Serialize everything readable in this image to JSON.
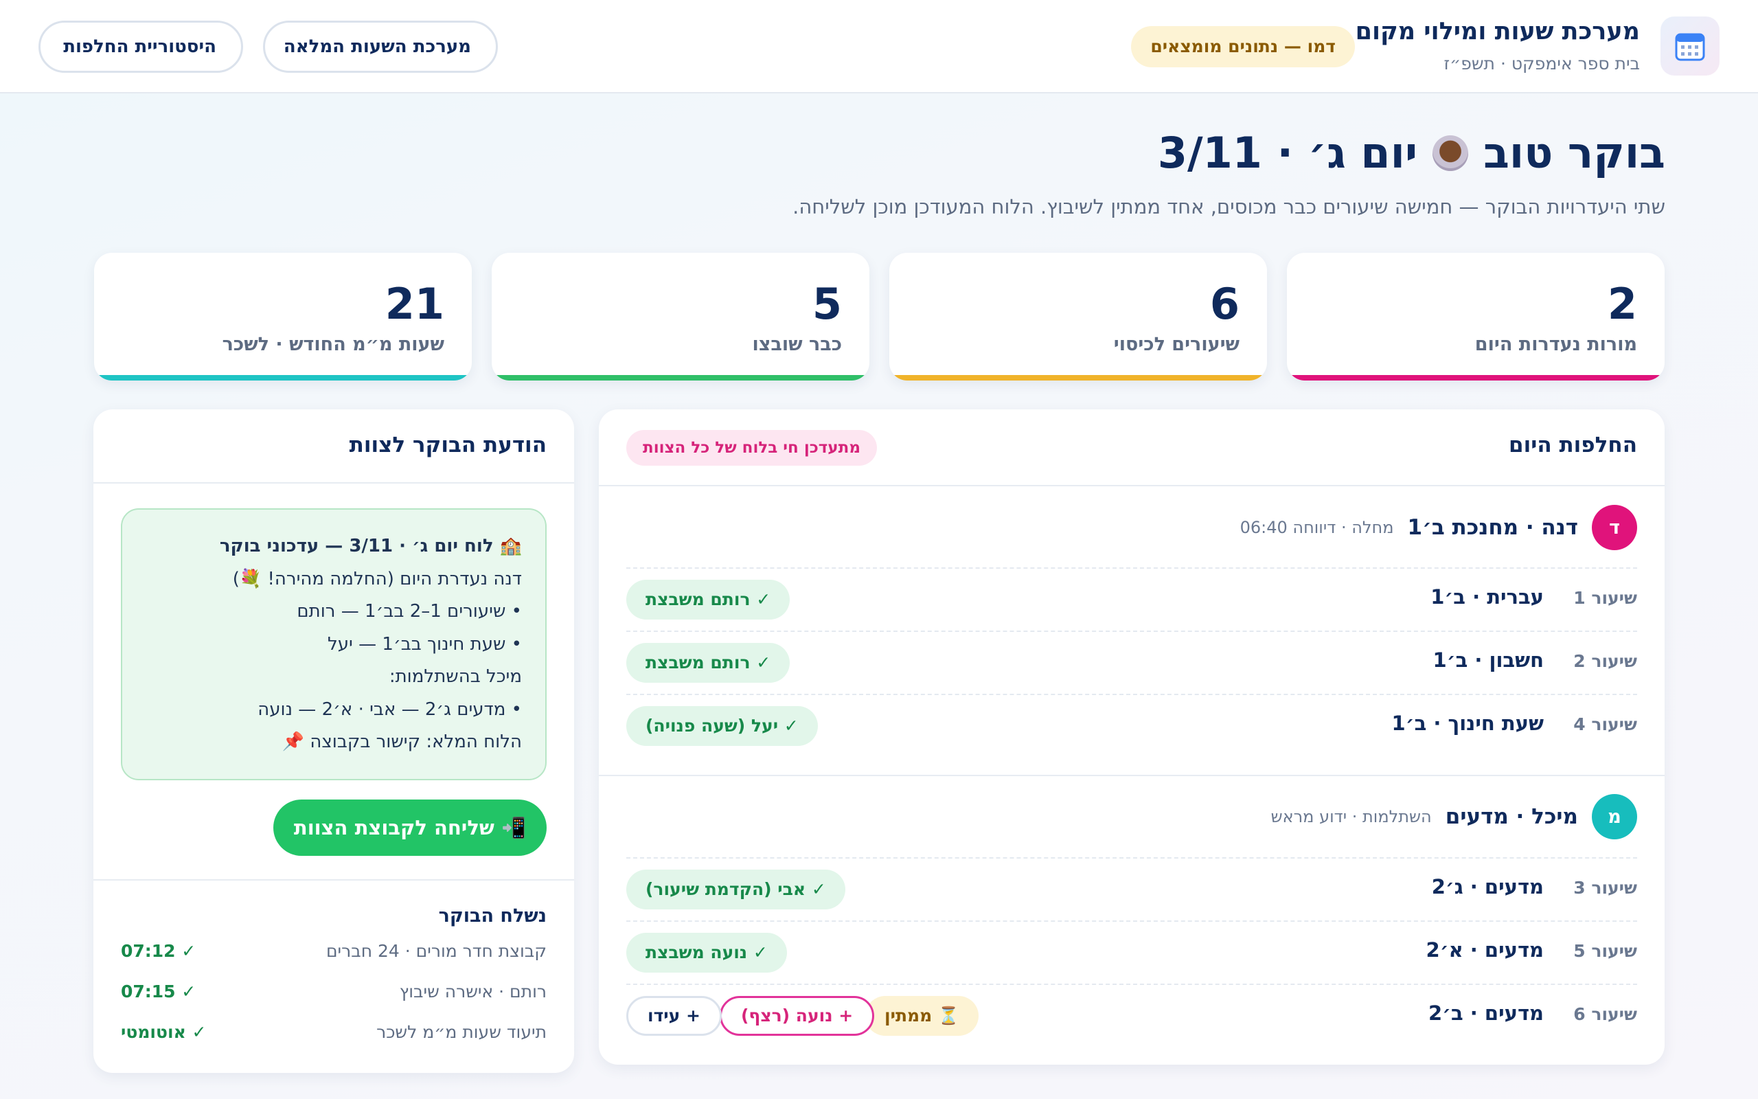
{
  "header": {
    "title": "מערכת שעות ומילוי מקום",
    "subtitle": "בית ספר אימפקט · תשפ״ז",
    "demo_badge": "דמו — נתונים מומצאים",
    "btn_full": "מערכת השעות המלאה",
    "btn_history": "היסטוריית החלפות"
  },
  "greeting": {
    "title_start": "בוקר טוב",
    "title_end": "יום ג׳ · 3/11",
    "subline": "שתי היעדרויות הבוקר — חמישה שיעורים כבר מכוסים, אחד ממתין לשיבוץ. הלוח המעודכן מוכן לשליחה."
  },
  "stats": [
    {
      "value": "2",
      "label": "מורות נעדרות היום",
      "color": "#e0137b"
    },
    {
      "value": "6",
      "label": "שיעורים לכיסוי",
      "color": "#f0b32a"
    },
    {
      "value": "5",
      "label": "כבר שובצו",
      "color": "#2fbf68"
    },
    {
      "value": "21",
      "label": "שעות מ״מ החודש · לשכר",
      "color": "#1ec4c4"
    }
  ],
  "main": {
    "title": "החלפות היום",
    "live_badge": "מתעדכן חי בלוח של כל הצוות",
    "teachers": [
      {
        "initial": "ד",
        "color": "#e0137b",
        "name": "דנה · מחנכת ב׳1",
        "meta": "מחלה · דיווחה 06:40",
        "lessons": [
          {
            "num": "שיעור 1",
            "subject": "עברית · ב׳1",
            "sub": "✓ רותם משבצת"
          },
          {
            "num": "שיעור 2",
            "subject": "חשבון · ב׳1",
            "sub": "✓ רותם משבצת"
          },
          {
            "num": "שיעור 4",
            "subject": "שעת חינוך · ב׳1",
            "sub": "✓ יעל (שעה פנויה)"
          }
        ]
      },
      {
        "initial": "מ",
        "color": "#17bdbd",
        "name": "מיכל · מדעים",
        "meta": "השתלמות · ידוע מראש",
        "lessons": [
          {
            "num": "שיעור 3",
            "subject": "מדעים · ג׳2",
            "sub": "✓ אבי (הקדמת שיעור)"
          },
          {
            "num": "שיעור 5",
            "subject": "מדעים · א׳2",
            "sub": "✓ נועה משבצת"
          },
          {
            "num": "שיעור 6",
            "subject": "מדעים · ב׳2",
            "waiting": "⏳ ממתין",
            "option": "+ נועה (רצף)",
            "more": "+ עידו"
          }
        ]
      }
    ]
  },
  "side": {
    "title": "הודעת הבוקר לצוות",
    "message": [
      "🏫 לוח יום ג׳ · 3/11 — עדכוני בוקר",
      "דנה נעדרת היום (החלמה מהירה! 💐)",
      "• שיעורים 1–2 בב׳1 — רותם",
      "• שעת חינוך בב׳1 — יעל",
      "מיכל בהשתלמות:",
      "• מדעים ג׳2 — אבי · א׳2 — נועה",
      "הלוח המלא: קישור בקבוצה 📌"
    ],
    "send_button": "📲 שליחה לקבוצת הצוות",
    "sent_title": "נשלח הבוקר",
    "sent": [
      {
        "text": "קבוצת חדר מורים · 24 חברים",
        "status": "✓ 07:12"
      },
      {
        "text": "רותם · אישרה שיבוץ",
        "status": "✓ 07:15"
      },
      {
        "text": "תיעוד שעות מ״מ לשכר",
        "status": "✓ אוטומטי"
      }
    ]
  },
  "icons": {
    "app": "calendar-icon",
    "cup": "coffee-cup-icon"
  }
}
